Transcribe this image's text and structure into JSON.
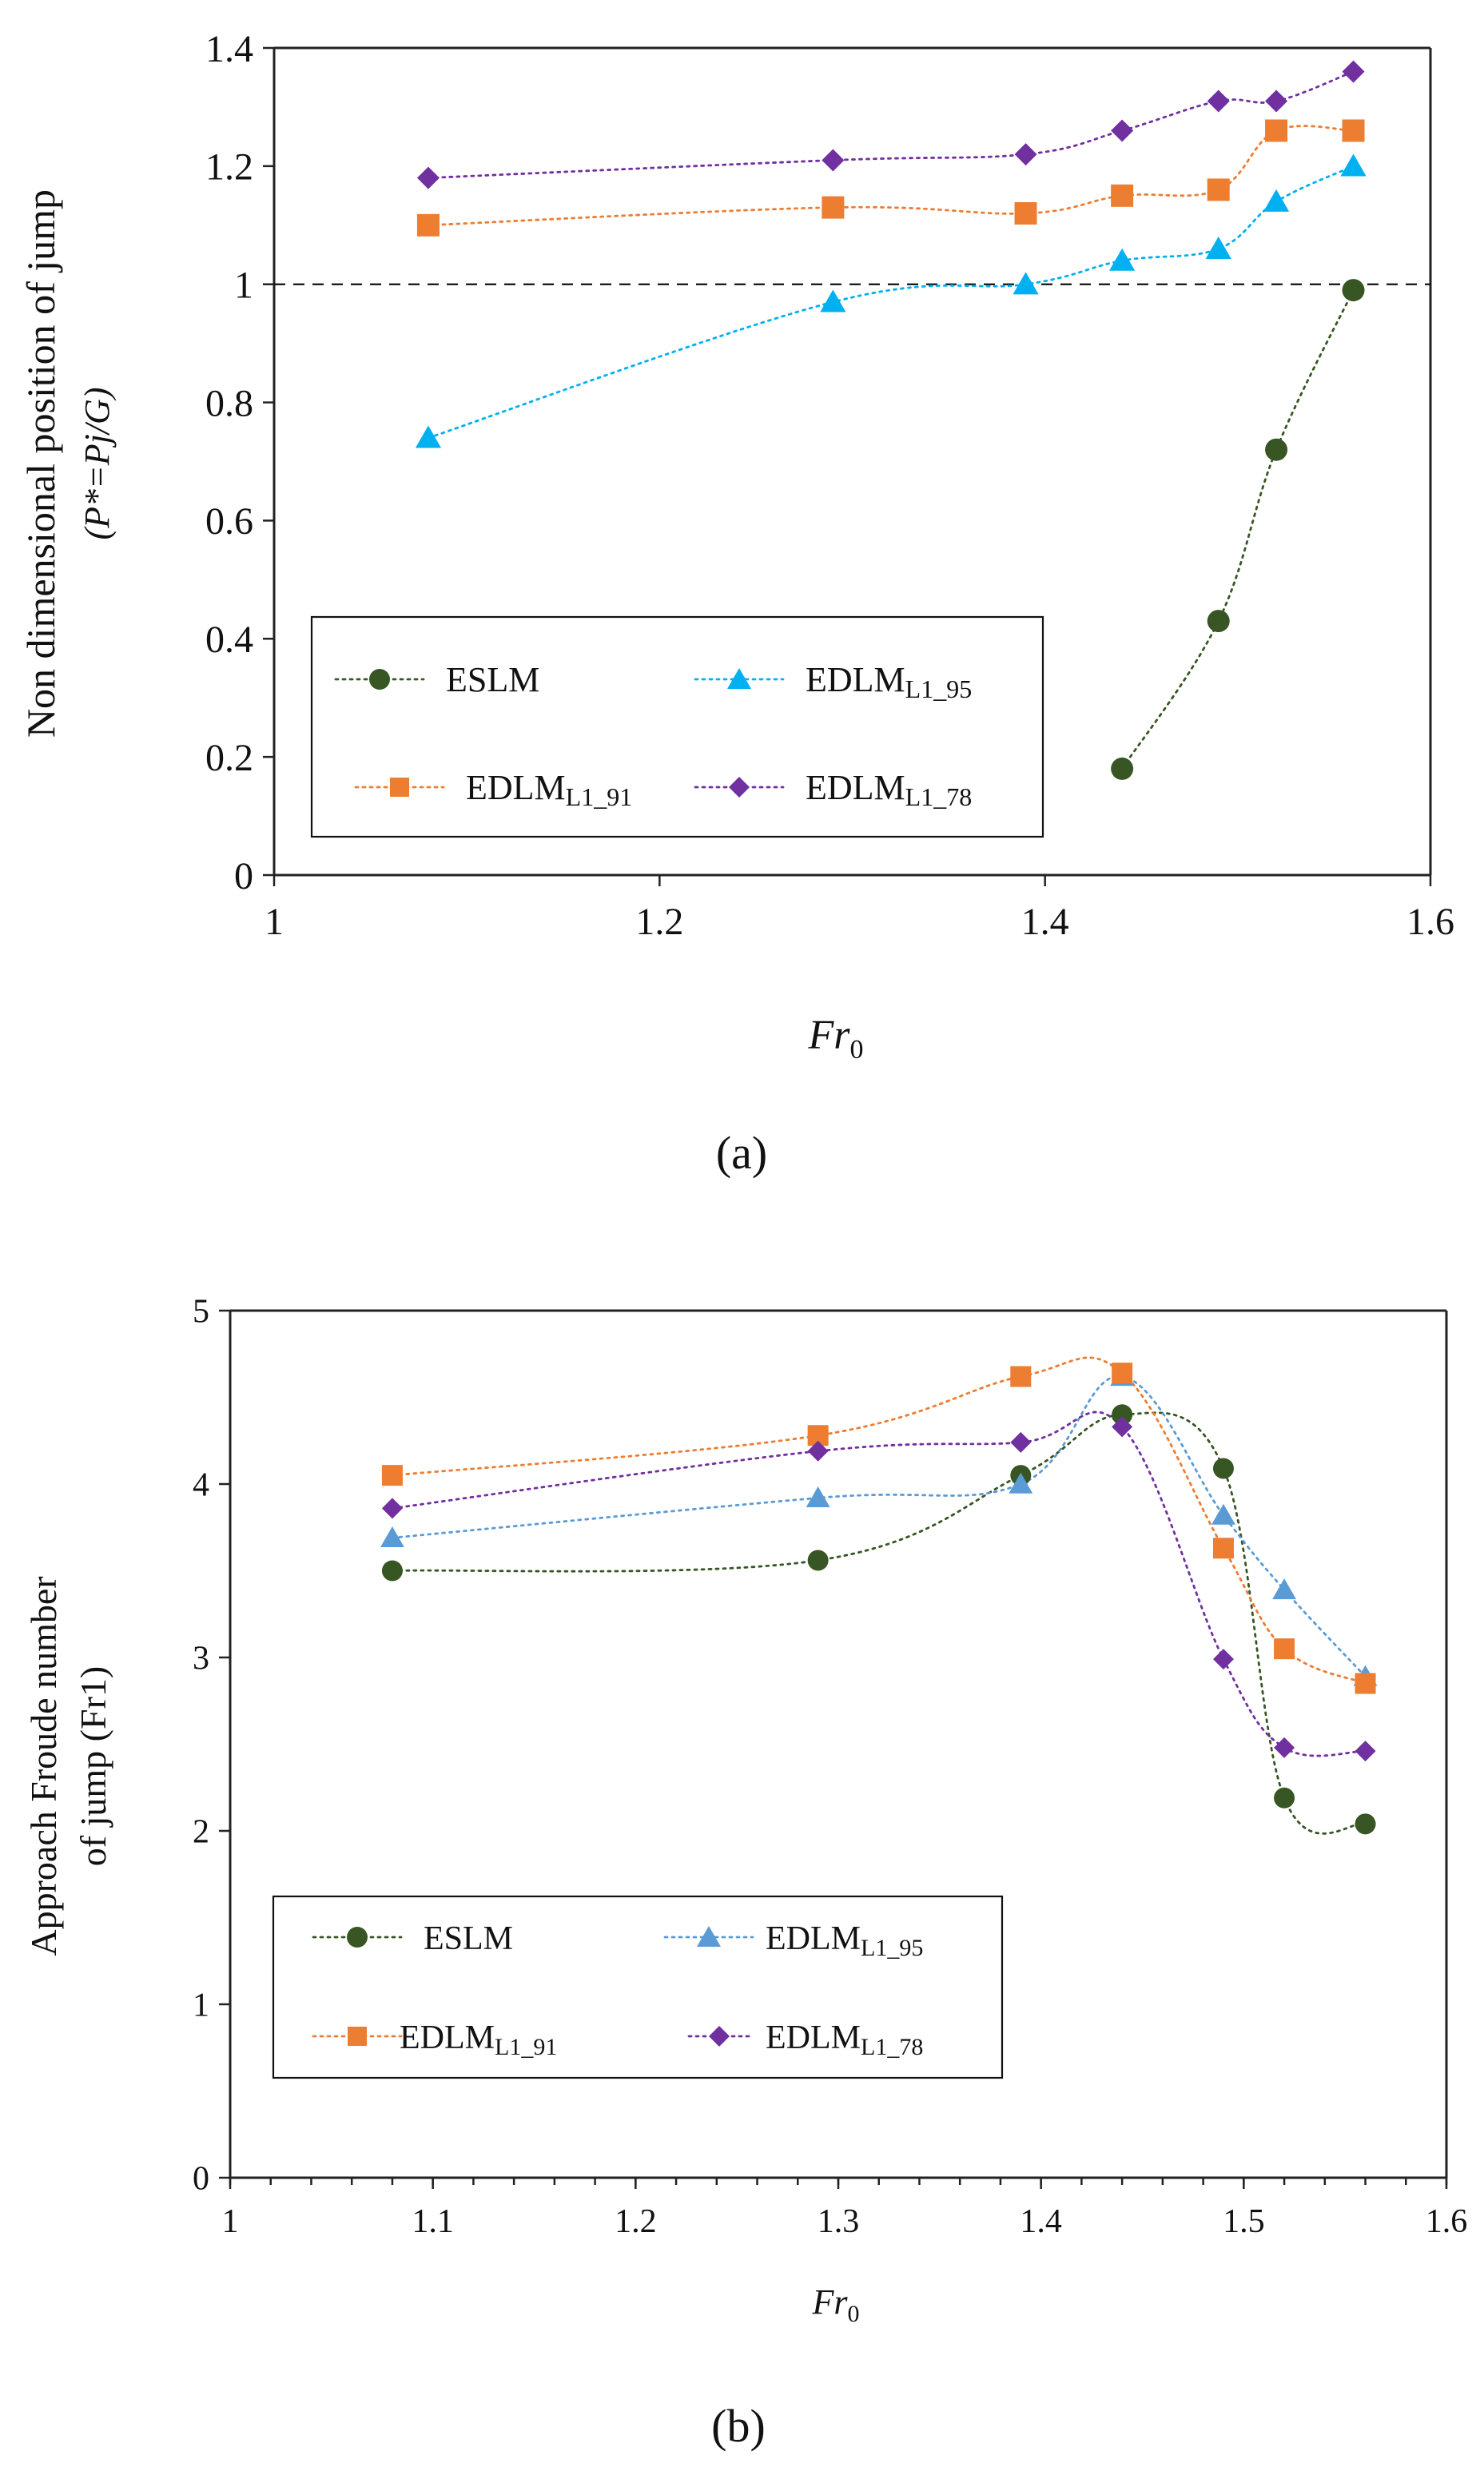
{
  "chart_data": [
    {
      "type": "line",
      "panel_label": "(a)",
      "xlabel": "Fr",
      "xlabel_sub": "0",
      "ylabel": "Non dimensional position of jump",
      "ylabel2": "(P*=Pj/G)",
      "xlim": [
        1,
        1.6
      ],
      "ylim": [
        0,
        1.4
      ],
      "xticks": [
        "1",
        "1.2",
        "1.4",
        "1.6"
      ],
      "yticks": [
        "0",
        "0.2",
        "0.4",
        "0.6",
        "0.8",
        "1",
        "1.2",
        "1.4"
      ],
      "reference_line": 1,
      "series": [
        {
          "name": "ESLM",
          "sub": "",
          "marker": "circle",
          "color": "#375623",
          "x": [
            1.44,
            1.49,
            1.52,
            1.56
          ],
          "y": [
            0.18,
            0.43,
            0.72,
            0.99
          ]
        },
        {
          "name": "EDLM",
          "sub": "L1_95",
          "marker": "triangle",
          "color": "#00b0f0",
          "x": [
            1.08,
            1.29,
            1.39,
            1.44,
            1.49,
            1.52,
            1.56
          ],
          "y": [
            0.74,
            0.97,
            1.0,
            1.04,
            1.06,
            1.14,
            1.2
          ]
        },
        {
          "name": "EDLM",
          "sub": "L1_91",
          "marker": "square",
          "color": "#ed7d31",
          "x": [
            1.08,
            1.29,
            1.39,
            1.44,
            1.49,
            1.52,
            1.56
          ],
          "y": [
            1.1,
            1.13,
            1.12,
            1.15,
            1.16,
            1.26,
            1.26
          ]
        },
        {
          "name": "EDLM",
          "sub": "L1_78",
          "marker": "diamond",
          "color": "#7030a0",
          "x": [
            1.08,
            1.29,
            1.39,
            1.44,
            1.49,
            1.52,
            1.56
          ],
          "y": [
            1.18,
            1.21,
            1.22,
            1.26,
            1.31,
            1.31,
            1.36
          ]
        }
      ]
    },
    {
      "type": "line",
      "panel_label": "(b)",
      "xlabel": "Fr",
      "xlabel_sub": "0",
      "ylabel": "Approach Froude number",
      "ylabel2": "of jump (Fr1)",
      "xlim": [
        1,
        1.6
      ],
      "ylim": [
        0,
        5
      ],
      "xticks": [
        "1",
        "1.1",
        "1.2",
        "1.3",
        "1.4",
        "1.5",
        "1.6"
      ],
      "yticks": [
        "0",
        "1",
        "2",
        "3",
        "4",
        "5"
      ],
      "series": [
        {
          "name": "ESLM",
          "sub": "",
          "marker": "circle",
          "color": "#375623",
          "x": [
            1.08,
            1.29,
            1.39,
            1.44,
            1.49,
            1.52,
            1.56
          ],
          "y": [
            3.5,
            3.56,
            4.05,
            4.4,
            4.09,
            2.19,
            2.04
          ]
        },
        {
          "name": "EDLM",
          "sub": "L1_95",
          "marker": "triangle",
          "color": "#5b9bd5",
          "x": [
            1.08,
            1.29,
            1.39,
            1.44,
            1.49,
            1.52,
            1.56
          ],
          "y": [
            3.69,
            3.92,
            4.0,
            4.62,
            3.82,
            3.39,
            2.89
          ]
        },
        {
          "name": "EDLM",
          "sub": "L1_91",
          "marker": "square",
          "color": "#ed7d31",
          "x": [
            1.08,
            1.29,
            1.39,
            1.44,
            1.49,
            1.52,
            1.56
          ],
          "y": [
            4.05,
            4.28,
            4.62,
            4.64,
            3.63,
            3.05,
            2.85
          ]
        },
        {
          "name": "EDLM",
          "sub": "L1_78",
          "marker": "diamond",
          "color": "#7030a0",
          "x": [
            1.08,
            1.29,
            1.39,
            1.44,
            1.49,
            1.52,
            1.56
          ],
          "y": [
            3.86,
            4.19,
            4.24,
            4.33,
            2.99,
            2.48,
            2.46
          ]
        }
      ]
    }
  ]
}
